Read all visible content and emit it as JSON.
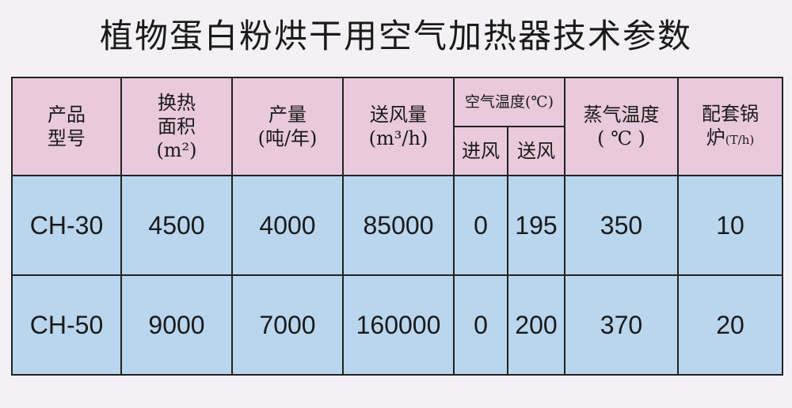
{
  "title": "植物蛋白粉烘干用空气加热器技术参数",
  "headers": {
    "model": [
      "产品",
      "型号"
    ],
    "area": [
      "换热",
      "面积",
      "(m²)"
    ],
    "output": [
      "产量",
      "(吨/年)"
    ],
    "airflow": [
      "送风量",
      "(m³/h)"
    ],
    "air_temp": "空气温度(℃)",
    "air_in": "进风",
    "air_out": "送风",
    "steam_temp": [
      "蒸气温度",
      "( ℃ )"
    ],
    "boiler": [
      "配套锅",
      "炉",
      "(T/h)"
    ]
  },
  "rows": [
    {
      "model": "CH-30",
      "area": "4500",
      "output": "4000",
      "airflow": "85000",
      "air_in": "0",
      "air_out": "195",
      "steam_temp": "350",
      "boiler": "10"
    },
    {
      "model": "CH-50",
      "area": "9000",
      "output": "7000",
      "airflow": "160000",
      "air_in": "0",
      "air_out": "200",
      "steam_temp": "370",
      "boiler": "20"
    }
  ]
}
